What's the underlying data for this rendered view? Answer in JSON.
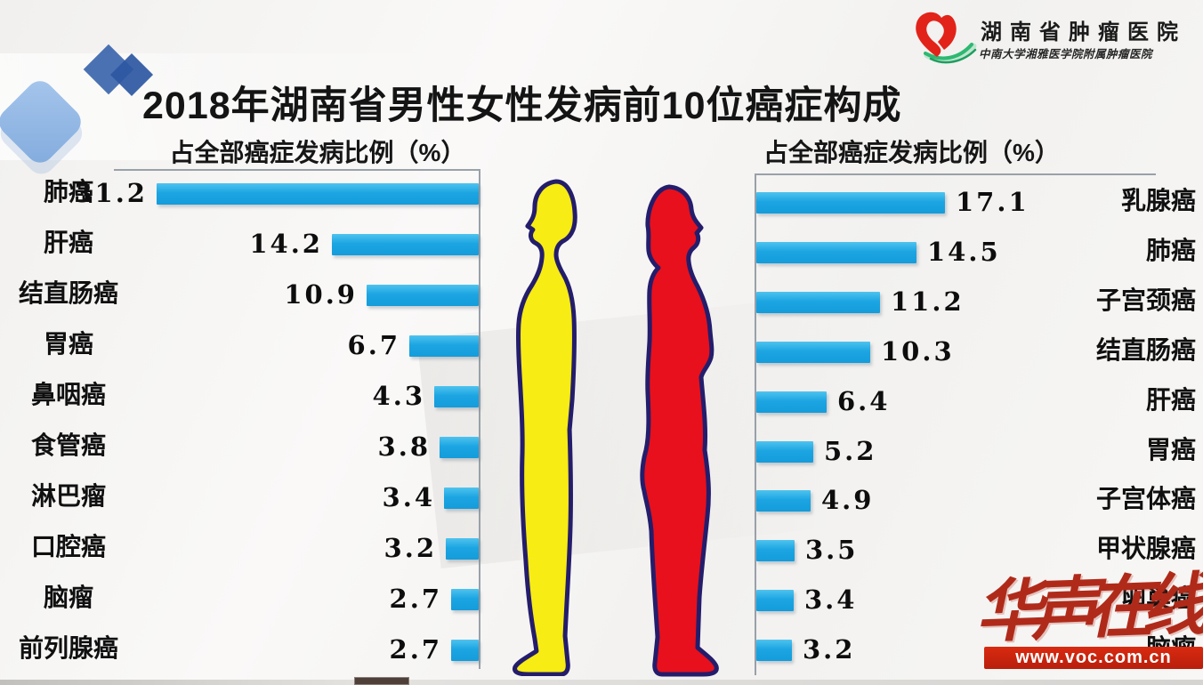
{
  "slide": {
    "title": "2018年湖南省男性女性发病前10位癌症构成",
    "left_axis_title": "占全部癌症发病比例（%）",
    "right_axis_title": "占全部癌症发病比例（%）"
  },
  "logo": {
    "hospital": "湖南省肿瘤医院",
    "affiliation": "中南大学湘雅医学院附属肿瘤医院"
  },
  "watermark": {
    "brand": "华声在线",
    "url": "www.voc.com.cn"
  },
  "chart_data": [
    {
      "type": "bar",
      "group": "male",
      "orientation": "horizontal, bars anchored right, growing left",
      "title": "占全部癌症发病比例（%）",
      "xlabel": "占全部癌症发病比例（%）",
      "categories": [
        "肺癌",
        "肝癌",
        "结直肠癌",
        "胃癌",
        "鼻咽癌",
        "食管癌",
        "淋巴瘤",
        "口腔癌",
        "脑瘤",
        "前列腺癌"
      ],
      "values": [
        31.2,
        14.2,
        10.9,
        6.7,
        4.3,
        3.8,
        3.4,
        3.2,
        2.7,
        2.7
      ],
      "value_range": [
        0,
        31.2
      ],
      "grid": false,
      "legend": false
    },
    {
      "type": "bar",
      "group": "female",
      "orientation": "horizontal, bars anchored left, growing right",
      "title": "占全部癌症发病比例（%）",
      "xlabel": "占全部癌症发病比例（%）",
      "categories": [
        "乳腺癌",
        "肺癌",
        "子宫颈癌",
        "结直肠癌",
        "肝癌",
        "胃癌",
        "子宫体癌",
        "甲状腺癌",
        "卵巢癌",
        "脑瘤"
      ],
      "values": [
        17.1,
        14.5,
        11.2,
        10.3,
        6.4,
        5.2,
        4.9,
        3.5,
        3.4,
        3.2
      ],
      "value_range": [
        0,
        17.1
      ],
      "grid": false,
      "legend": false
    }
  ],
  "colors": {
    "bar": "#1ca5e2",
    "male_figure": "#f7ec13",
    "female_figure": "#e8101c",
    "figure_outline": "#241d6b",
    "watermark_red": "#b02a1a",
    "banner_red": "#c42310",
    "axis_line": "#99a1a9"
  }
}
